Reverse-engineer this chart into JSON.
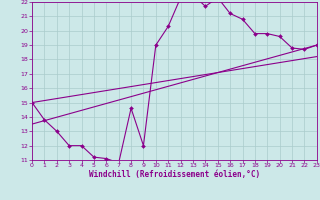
{
  "bg_color": "#cce8e8",
  "line_color": "#8b008b",
  "grid_color": "#aacccc",
  "xlabel": "Windchill (Refroidissement éolien,°C)",
  "xlim": [
    0,
    23
  ],
  "ylim": [
    11,
    22
  ],
  "xticks": [
    0,
    1,
    2,
    3,
    4,
    5,
    6,
    7,
    8,
    9,
    10,
    11,
    12,
    13,
    14,
    15,
    16,
    17,
    18,
    19,
    20,
    21,
    22,
    23
  ],
  "yticks": [
    11,
    12,
    13,
    14,
    15,
    16,
    17,
    18,
    19,
    20,
    21,
    22
  ],
  "curve_x": [
    0,
    1,
    2,
    3,
    4,
    5,
    6,
    7,
    8,
    9,
    10,
    11,
    12,
    13,
    14,
    15,
    16,
    17,
    18,
    19,
    20,
    21,
    22,
    23
  ],
  "curve_y": [
    15.0,
    13.8,
    13.0,
    12.0,
    12.0,
    11.2,
    11.1,
    10.8,
    14.6,
    12.0,
    19.0,
    20.3,
    22.3,
    22.5,
    21.7,
    22.3,
    21.2,
    20.8,
    19.8,
    19.8,
    19.6,
    18.8,
    18.7,
    19.0
  ],
  "line1_x": [
    0,
    23
  ],
  "line1_y": [
    13.5,
    19.0
  ],
  "line2_x": [
    0,
    23
  ],
  "line2_y": [
    15.0,
    18.2
  ]
}
